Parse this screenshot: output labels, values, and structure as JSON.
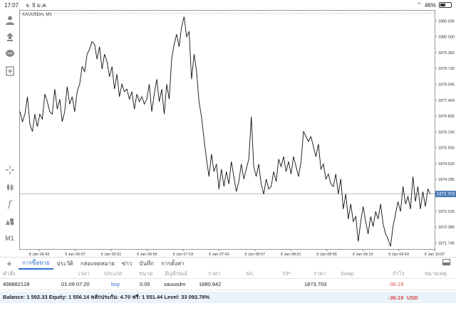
{
  "status": {
    "time": "17:07",
    "date": "จ. 9 ม.ค.",
    "battery": "46%",
    "battery_level": 0.46
  },
  "chart": {
    "symbol_label": "XAUUSDm, M1",
    "current_price": "1873.703"
  },
  "chart_data": {
    "type": "line",
    "title": "XAUUSDm, M1",
    "xlabel": "",
    "ylabel": "",
    "x_ticks": [
      "9 Jan 05:43",
      "9 Jan 06:07",
      "9 Jan 06:31",
      "9 Jan 06:55",
      "9 Jan 07:19",
      "9 Jan 07:43",
      "9 Jan 08:07",
      "9 Jan 08:31",
      "9 Jan 08:55",
      "9 Jan 09:19",
      "9 Jan 09:43",
      "9 Jan 10:07"
    ],
    "y_ticks": [
      "1880.635",
      "1880.000",
      "1879.365",
      "1878.730",
      "1878.095",
      "1877.460",
      "1876.825",
      "1876.190",
      "1875.555",
      "1874.920",
      "1874.285",
      "1873.650",
      "1873.015",
      "1872.380",
      "1871.745"
    ],
    "ylim": [
      1871.5,
      1880.9
    ],
    "current_price": 1873.703,
    "series": [
      {
        "values": [
          1877.0,
          1876.6,
          1876.9,
          1877.6,
          1876.5,
          1876.2,
          1876.9,
          1876.4,
          1876.9,
          1876.7,
          1877.7,
          1877.4,
          1877.0,
          1876.9,
          1877.9,
          1877.1,
          1877.5,
          1876.6,
          1877.0,
          1878.0,
          1877.3,
          1877.6,
          1877.0,
          1877.8,
          1878.1,
          1878.8,
          1878.6,
          1879.3,
          1879.5,
          1879.8,
          1879.7,
          1879.1,
          1879.6,
          1878.7,
          1879.3,
          1879.0,
          1878.4,
          1878.8,
          1877.9,
          1878.5,
          1877.6,
          1878.1,
          1877.8,
          1877.9,
          1877.5,
          1877.8,
          1877.1,
          1877.7,
          1877.4,
          1877.6,
          1877.3,
          1877.5,
          1878.1,
          1877.0,
          1877.7,
          1878.3,
          1877.4,
          1877.9,
          1876.9,
          1878.1,
          1877.5,
          1879.1,
          1879.7,
          1880.1,
          1879.6,
          1880.4,
          1880.8,
          1880.0,
          1880.2,
          1878.3,
          1879.3,
          1878.6,
          1877.4,
          1876.8,
          1875.9,
          1875.1,
          1874.4,
          1875.3,
          1874.6,
          1874.9,
          1873.9,
          1874.7,
          1874.0,
          1874.6,
          1874.1,
          1875.0,
          1874.4,
          1873.8,
          1874.2,
          1874.9,
          1874.3,
          1874.7,
          1875.1,
          1876.8,
          1874.8,
          1874.4,
          1874.9,
          1874.1,
          1873.7,
          1874.3,
          1873.9,
          1874.0,
          1874.6,
          1874.2,
          1875.1,
          1874.8,
          1875.2,
          1874.6,
          1875.0,
          1874.5,
          1875.2,
          1874.8,
          1874.4,
          1875.0,
          1876.2,
          1876.0,
          1875.8,
          1876.0,
          1875.6,
          1875.2,
          1875.7,
          1874.7,
          1874.9,
          1874.3,
          1874.5,
          1874.1,
          1874.0,
          1874.5,
          1873.7,
          1874.3,
          1873.1,
          1873.7,
          1872.7,
          1873.3,
          1872.6,
          1872.8,
          1871.8,
          1872.6,
          1873.2,
          1872.6,
          1872.1,
          1872.8,
          1872.4,
          1873.0,
          1872.7,
          1873.3,
          1872.5,
          1872.1,
          1871.9,
          1871.6,
          1872.4,
          1872.9,
          1873.4,
          1873.0,
          1874.0,
          1873.3,
          1873.6,
          1873.1,
          1874.4,
          1873.4,
          1874.0,
          1873.1,
          1873.8,
          1873.2,
          1873.9,
          1873.7
        ]
      }
    ]
  },
  "toolbar": {
    "m1_label": "M1",
    "f_label": "f"
  },
  "tabs": [
    "การซื้อขาย",
    "ประวัติ",
    "กล่องจดหมาย",
    "ข่าว",
    "บันทึก",
    "การตั้งค่า"
  ],
  "table": {
    "headers": {
      "ticket": "คำสั่ง",
      "time": "เวลา",
      "type": "ประเภท",
      "volume": "ขนาด",
      "symbol": "สัญลักษณ์",
      "price": "ราคา",
      "sl": "S/L",
      "tp": "T/P",
      "price2": "ราคา",
      "swap": "Swap",
      "profit": "กำไร",
      "comment": "หมายเหตุ"
    },
    "row": {
      "ticket": "498882128",
      "time": "01.09 07:20",
      "type": "buy",
      "volume": "0.05",
      "symbol": "xauusdm",
      "price": "1880.942",
      "current": "1873.703",
      "profit": "-36.19"
    }
  },
  "balance": {
    "text": "Balance: 1 592.33 Equity: 1 556.14 หลักประกัน: 4.70 ฟรี: 1 551.44 Level: 33 092.78%",
    "profit": "-36.19",
    "currency": "USD"
  }
}
